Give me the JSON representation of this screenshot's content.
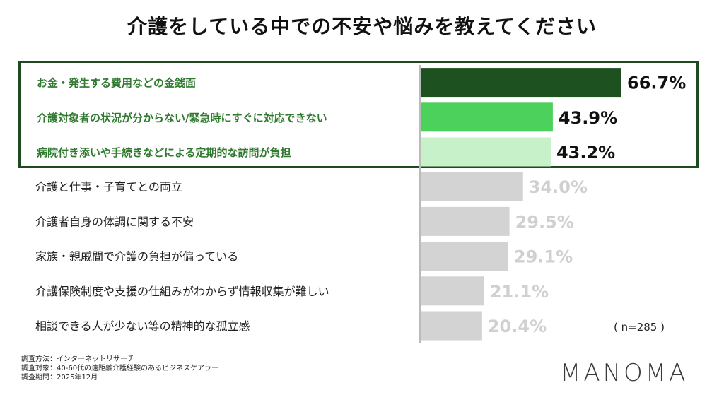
{
  "title": "介護をしている中での不安や悩みを教えてください",
  "note_n": "( n=285 )",
  "logo": "MANOMA",
  "meta": {
    "method": "調査方法：インターネットリサーチ",
    "target": "調査対象：40-60代の遠距離介護経験のあるビジネスケアラー",
    "period": "調査期間：2025年12月"
  },
  "colors": {
    "highlight_border": "#1d4a1f",
    "highlight_text": "#2f7a2f",
    "bar_top1": "#1d5220",
    "bar_top2": "#4cd25c",
    "bar_top3": "#c6f1c9",
    "bar_other": "#d3d3d3",
    "value_other": "#d0d0d0"
  },
  "chart_data": {
    "type": "bar",
    "orientation": "horizontal",
    "title": "介護をしている中での不安や悩みを教えてください",
    "unit": "%",
    "xlim": [
      0,
      100
    ],
    "categories": [
      "お金・発生する費用などの金銭面",
      "介護対象者の状況が分からない/緊急時にすぐに対応できない",
      "病院付き添いや手続きなどによる定期的な訪問が負担",
      "介護と仕事・子育てとの両立",
      "介護者自身の体調に関する不安",
      "家族・親戚間で介護の負担が偏っている",
      "介護保険制度や支援の仕組みがわからず情報収集が難しい",
      "相談できる人が少ない等の精神的な孤立感"
    ],
    "values": [
      66.7,
      43.9,
      43.2,
      34.0,
      29.5,
      29.1,
      21.1,
      20.4
    ],
    "value_labels": [
      "66.7%",
      "43.9%",
      "43.2%",
      "34.0%",
      "29.5%",
      "29.1%",
      "21.1%",
      "20.4%"
    ],
    "highlighted_count": 3
  }
}
